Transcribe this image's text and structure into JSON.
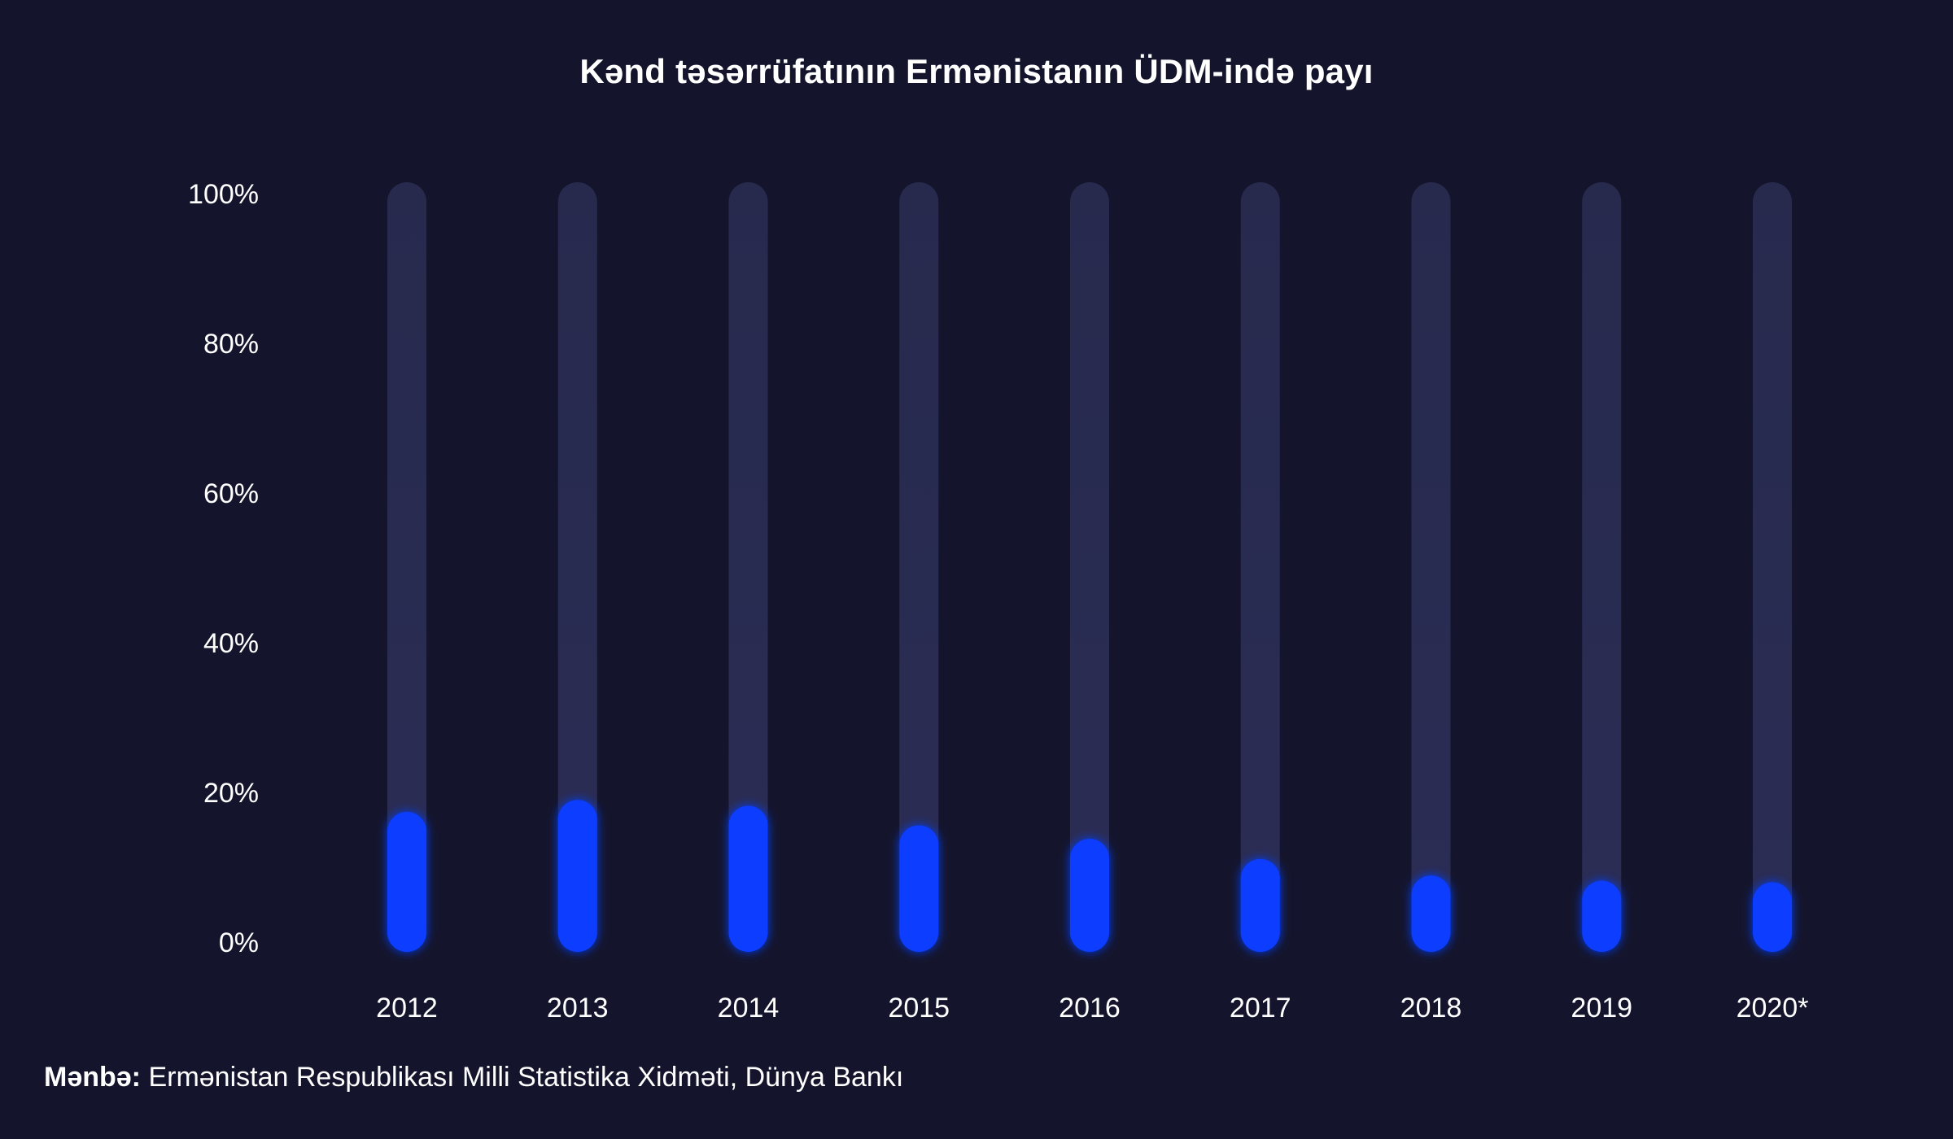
{
  "title": "Kənd təsərrüfatının Ermənistanın ÜDM-ində payı",
  "source": {
    "label": "Mənbə:",
    "text": "Ermənistan Respublikası Milli Statistika Xidməti, Dünya Bankı"
  },
  "colors": {
    "background": "#14152c",
    "track": "#26284a",
    "bar": "#0a3cff",
    "text": "#ffffff"
  },
  "chart_data": {
    "type": "bar",
    "title": "Kənd təsərrüfatının Ermənistanın ÜDM-ində payı",
    "xlabel": "",
    "ylabel": "",
    "ylim": [
      0,
      100
    ],
    "y_ticks": [
      "0%",
      "20%",
      "40%",
      "60%",
      "80%",
      "100%"
    ],
    "y_tick_values": [
      0,
      20,
      40,
      60,
      80,
      100
    ],
    "grid": false,
    "legend": "none",
    "categories": [
      "2012",
      "2013",
      "2014",
      "2015",
      "2016",
      "2017",
      "2018",
      "2019",
      "2020*"
    ],
    "values": [
      17.4,
      19.0,
      18.2,
      15.6,
      13.8,
      11.1,
      8.9,
      8.2,
      8.0
    ]
  }
}
